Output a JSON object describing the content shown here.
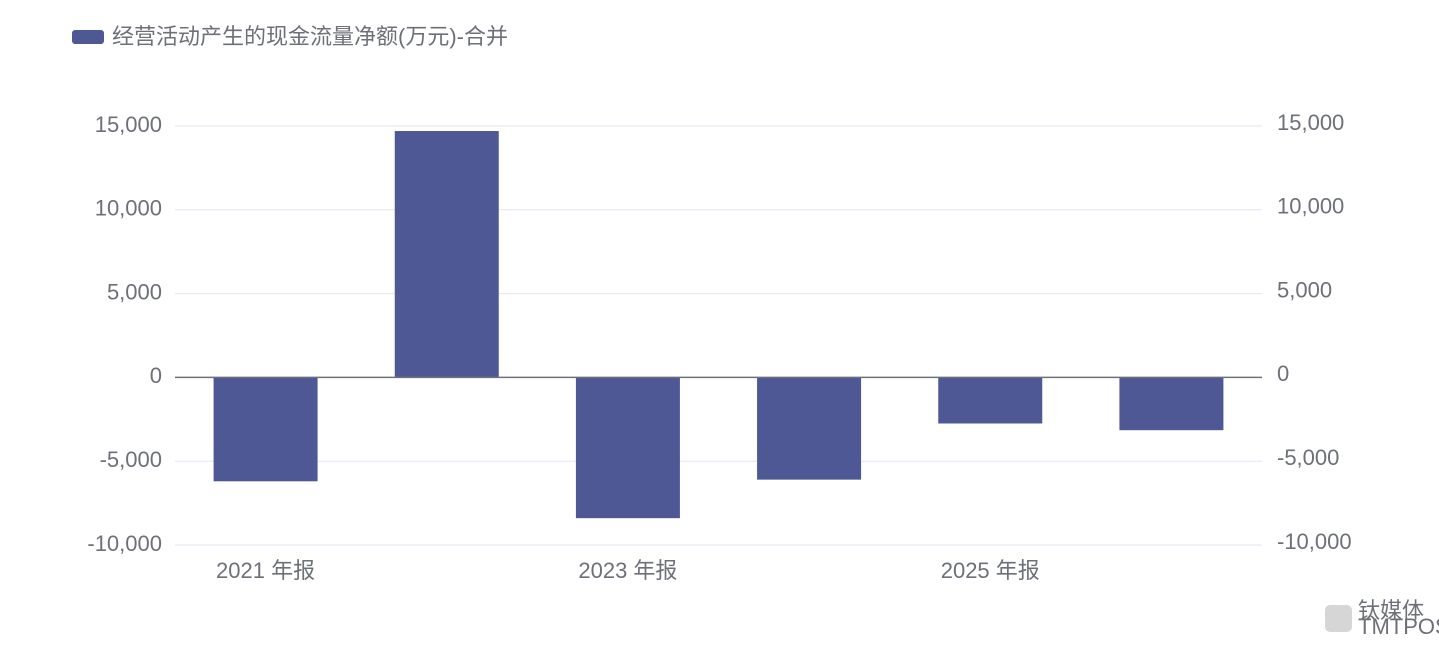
{
  "chart_data": {
    "type": "bar",
    "legend_position": "top-left",
    "categories": [
      "2021 年报",
      null,
      "2023 年报",
      null,
      "2025 年报",
      null
    ],
    "series": [
      {
        "name": "经营活动产生的现金流量净额(万元)-合并",
        "color": "#4e5895",
        "values": [
          -6200,
          14700,
          -8400,
          -6100,
          -2750,
          -3150
        ]
      }
    ],
    "ylim": [
      -10000,
      15000
    ],
    "yticks": [
      {
        "value": -10000,
        "label": "-10,000"
      },
      {
        "value": -5000,
        "label": "-5,000"
      },
      0,
      {
        "value": 5000,
        "label": "5,000"
      },
      {
        "value": 10000,
        "label": "10,000"
      },
      {
        "value": 15000,
        "label": "15,000"
      }
    ],
    "y2lim": [
      -10000,
      15000
    ],
    "y2ticks": [
      {
        "value": -10000,
        "label": "-10,000"
      },
      {
        "value": -5000,
        "label": "-5,000"
      },
      0,
      {
        "value": 5000,
        "label": "5,000"
      },
      {
        "value": 10000,
        "label": "10,000"
      },
      {
        "value": 15000,
        "label": "15,000"
      }
    ],
    "grid": true,
    "watermark": {
      "text": "钛媒体",
      "subtext": "TMTPOST"
    }
  }
}
